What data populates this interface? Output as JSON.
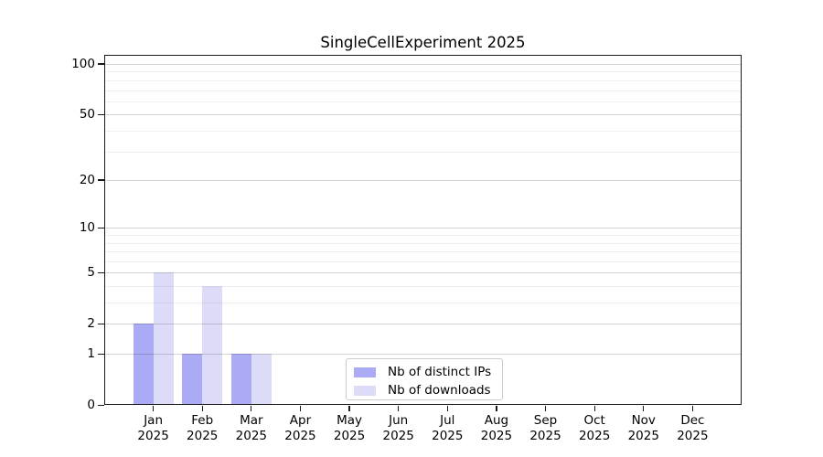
{
  "chart_data": {
    "type": "bar",
    "title": "SingleCellExperiment 2025",
    "year": "2025",
    "categories": [
      "Jan",
      "Feb",
      "Mar",
      "Apr",
      "May",
      "Jun",
      "Jul",
      "Aug",
      "Sep",
      "Oct",
      "Nov",
      "Dec"
    ],
    "series": [
      {
        "name": "Nb of distinct IPs",
        "color": "#aaaaf5",
        "values": [
          2,
          1,
          1,
          0,
          0,
          0,
          0,
          0,
          0,
          0,
          0,
          0
        ]
      },
      {
        "name": "Nb of downloads",
        "color": "#dcdcf8",
        "values": [
          5,
          4,
          1,
          0,
          0,
          0,
          0,
          0,
          0,
          0,
          0,
          0
        ]
      }
    ],
    "yscale": "log1p",
    "ylim": [
      0,
      114
    ],
    "y_major_ticks": [
      0,
      1,
      2,
      5,
      10,
      20,
      50,
      100
    ],
    "y_minor_gridlines": [
      3,
      4,
      6,
      7,
      8,
      9,
      30,
      40,
      60,
      70,
      80,
      90
    ],
    "grid": "horizontal",
    "legend_position": "bottom-center"
  },
  "legend": {
    "items": [
      {
        "label": "Nb of distinct IPs",
        "color": "#aaaaf5"
      },
      {
        "label": "Nb of downloads",
        "color": "#dcdcf8"
      }
    ]
  },
  "colors": {
    "background": "#ffffff",
    "axis": "#1a1a1a",
    "grid_major": "rgba(0,0,0,0.17)",
    "grid_minor": "rgba(0,0,0,0.065)",
    "legend_border": "#cccccc",
    "text": "#000000"
  }
}
